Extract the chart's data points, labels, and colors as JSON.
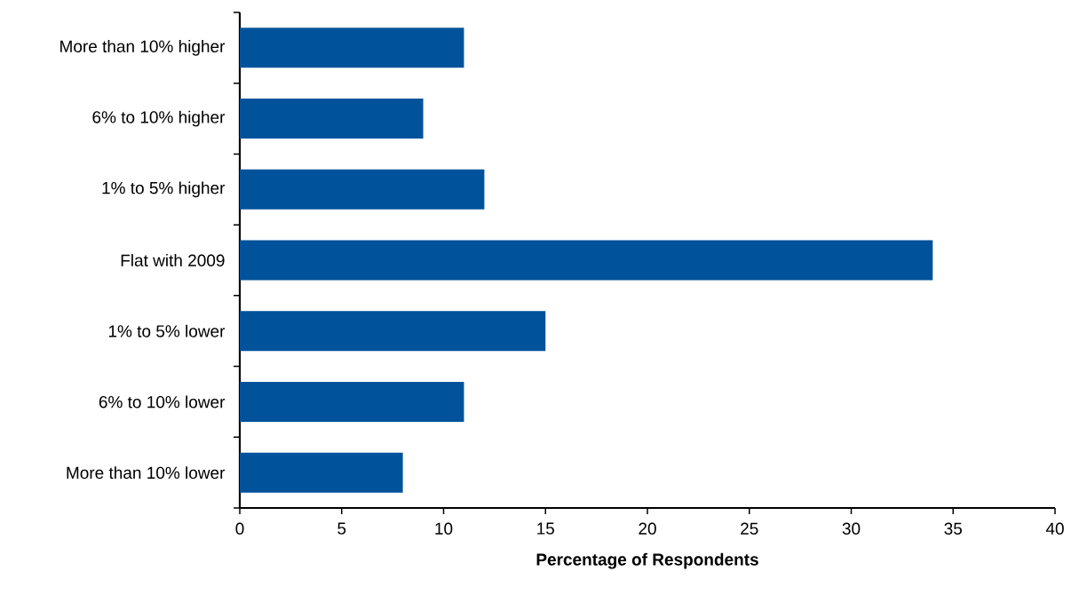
{
  "chart_data": {
    "type": "bar",
    "orientation": "horizontal",
    "xlabel": "Percentage of Respondents",
    "categories": [
      "More than 10% higher",
      "6% to 10% higher",
      "1% to 5% higher",
      "Flat with 2009",
      "1% to 5% lower",
      "6% to 10% lower",
      "More than 10% lower"
    ],
    "values": [
      11,
      9,
      12,
      34,
      15,
      11,
      8
    ],
    "color": "#00529b",
    "xlim": [
      0,
      40
    ],
    "xticks": [
      0,
      5,
      10,
      15,
      20,
      25,
      30,
      35,
      40
    ]
  }
}
